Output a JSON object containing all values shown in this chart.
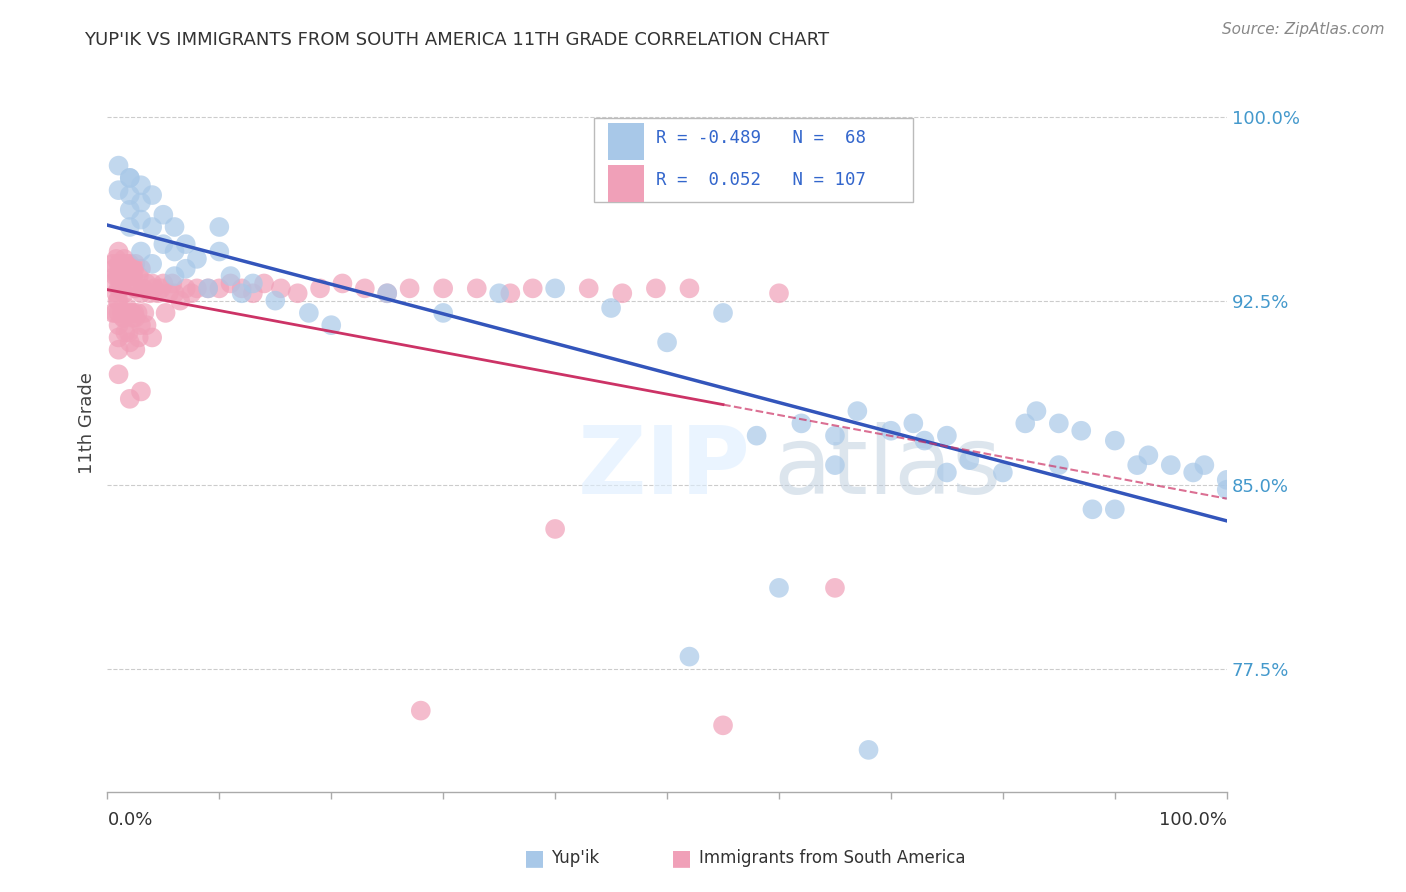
{
  "title": "YUP'IK VS IMMIGRANTS FROM SOUTH AMERICA 11TH GRADE CORRELATION CHART",
  "source_text": "Source: ZipAtlas.com",
  "ylabel": "11th Grade",
  "xlim": [
    0.0,
    1.0
  ],
  "ylim": [
    0.725,
    1.025
  ],
  "yticks": [
    0.775,
    0.85,
    0.925,
    1.0
  ],
  "ytick_labels": [
    "77.5%",
    "85.0%",
    "92.5%",
    "100.0%"
  ],
  "blue_color": "#A8C8E8",
  "pink_color": "#F0A0B8",
  "blue_line_color": "#3355BB",
  "pink_line_color": "#CC3366",
  "blue_scatter_x": [
    0.01,
    0.01,
    0.02,
    0.02,
    0.02,
    0.02,
    0.02,
    0.03,
    0.03,
    0.03,
    0.03,
    0.04,
    0.04,
    0.04,
    0.05,
    0.05,
    0.06,
    0.06,
    0.06,
    0.07,
    0.07,
    0.08,
    0.09,
    0.1,
    0.1,
    0.11,
    0.12,
    0.13,
    0.15,
    0.18,
    0.2,
    0.25,
    0.3,
    0.35,
    0.4,
    0.45,
    0.5,
    0.52,
    0.55,
    0.58,
    0.6,
    0.62,
    0.65,
    0.65,
    0.67,
    0.68,
    0.7,
    0.72,
    0.73,
    0.75,
    0.75,
    0.77,
    0.8,
    0.82,
    0.83,
    0.85,
    0.85,
    0.87,
    0.88,
    0.9,
    0.9,
    0.92,
    0.93,
    0.95,
    0.97,
    0.98,
    1.0,
    1.0
  ],
  "blue_scatter_y": [
    0.98,
    0.97,
    0.975,
    0.968,
    0.962,
    0.955,
    0.975,
    0.972,
    0.965,
    0.958,
    0.945,
    0.968,
    0.955,
    0.94,
    0.96,
    0.948,
    0.955,
    0.945,
    0.935,
    0.948,
    0.938,
    0.942,
    0.93,
    0.955,
    0.945,
    0.935,
    0.928,
    0.932,
    0.925,
    0.92,
    0.915,
    0.928,
    0.92,
    0.928,
    0.93,
    0.922,
    0.908,
    0.78,
    0.92,
    0.87,
    0.808,
    0.875,
    0.87,
    0.858,
    0.88,
    0.742,
    0.872,
    0.875,
    0.868,
    0.87,
    0.855,
    0.86,
    0.855,
    0.875,
    0.88,
    0.875,
    0.858,
    0.872,
    0.84,
    0.84,
    0.868,
    0.858,
    0.862,
    0.858,
    0.855,
    0.858,
    0.848,
    0.852
  ],
  "pink_scatter_x": [
    0.005,
    0.005,
    0.005,
    0.006,
    0.007,
    0.007,
    0.008,
    0.008,
    0.009,
    0.009,
    0.01,
    0.01,
    0.01,
    0.01,
    0.01,
    0.01,
    0.01,
    0.01,
    0.01,
    0.01,
    0.012,
    0.012,
    0.013,
    0.013,
    0.014,
    0.014,
    0.015,
    0.015,
    0.015,
    0.015,
    0.016,
    0.016,
    0.017,
    0.017,
    0.018,
    0.018,
    0.019,
    0.019,
    0.02,
    0.02,
    0.02,
    0.02,
    0.02,
    0.021,
    0.022,
    0.022,
    0.023,
    0.023,
    0.024,
    0.024,
    0.025,
    0.025,
    0.025,
    0.025,
    0.026,
    0.027,
    0.028,
    0.028,
    0.03,
    0.03,
    0.03,
    0.03,
    0.032,
    0.033,
    0.035,
    0.035,
    0.038,
    0.04,
    0.04,
    0.042,
    0.045,
    0.048,
    0.05,
    0.052,
    0.055,
    0.058,
    0.06,
    0.065,
    0.07,
    0.075,
    0.08,
    0.09,
    0.1,
    0.11,
    0.12,
    0.13,
    0.14,
    0.155,
    0.17,
    0.19,
    0.21,
    0.23,
    0.25,
    0.27,
    0.28,
    0.3,
    0.33,
    0.36,
    0.38,
    0.4,
    0.43,
    0.46,
    0.49,
    0.52,
    0.55,
    0.6,
    0.65
  ],
  "pink_scatter_y": [
    0.94,
    0.932,
    0.92,
    0.938,
    0.935,
    0.92,
    0.942,
    0.928,
    0.935,
    0.925,
    0.945,
    0.94,
    0.935,
    0.93,
    0.925,
    0.92,
    0.915,
    0.91,
    0.905,
    0.895,
    0.94,
    0.93,
    0.938,
    0.92,
    0.935,
    0.918,
    0.942,
    0.935,
    0.928,
    0.918,
    0.938,
    0.912,
    0.935,
    0.92,
    0.94,
    0.922,
    0.935,
    0.912,
    0.94,
    0.932,
    0.92,
    0.908,
    0.885,
    0.935,
    0.938,
    0.92,
    0.935,
    0.918,
    0.938,
    0.92,
    0.94,
    0.93,
    0.918,
    0.905,
    0.93,
    0.92,
    0.935,
    0.91,
    0.938,
    0.928,
    0.915,
    0.888,
    0.93,
    0.92,
    0.932,
    0.915,
    0.928,
    0.932,
    0.91,
    0.93,
    0.928,
    0.93,
    0.932,
    0.92,
    0.928,
    0.932,
    0.928,
    0.925,
    0.93,
    0.928,
    0.93,
    0.93,
    0.93,
    0.932,
    0.93,
    0.928,
    0.932,
    0.93,
    0.928,
    0.93,
    0.932,
    0.93,
    0.928,
    0.93,
    0.758,
    0.93,
    0.93,
    0.928,
    0.93,
    0.832,
    0.93,
    0.928,
    0.93,
    0.93,
    0.752,
    0.928,
    0.808
  ]
}
